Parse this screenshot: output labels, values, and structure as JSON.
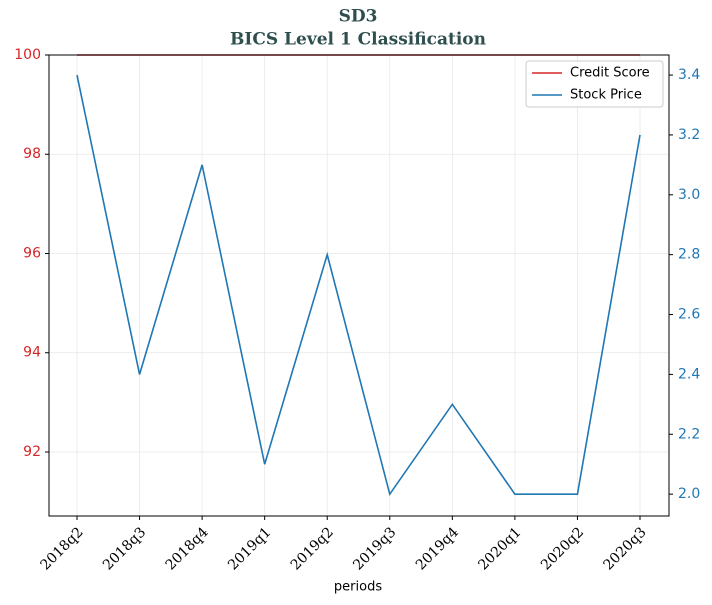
{
  "chart_data": {
    "type": "line",
    "title": "SD3",
    "subtitle": "BICS Level 1 Classification",
    "x_label": "periods",
    "categories": [
      "2018q2",
      "2018q3",
      "2018q4",
      "2019q1",
      "2019q2",
      "2019q3",
      "2019q4",
      "2020q1",
      "2020q2",
      "2020q3"
    ],
    "series": [
      {
        "name": "Credit Score",
        "color": "#d62728",
        "values": [
          100,
          100,
          100,
          100,
          100,
          100,
          100,
          100,
          100,
          100
        ]
      },
      {
        "name": "Stock Price",
        "color": "#1f77b4",
        "axis": "y2",
        "values": [
          3.4,
          2.4,
          3.1,
          2.1,
          2.8,
          2.0,
          2.3,
          2.0,
          2.0,
          3.2
        ]
      }
    ],
    "ylim": [
      90.71,
      100
    ],
    "yticks": [
      92,
      94,
      96,
      98,
      100
    ],
    "y2lim": [
      1.927,
      3.467
    ],
    "y2ticks": [
      {
        "value": 2,
        "label": "2.0"
      },
      2.2,
      2.4,
      2.6,
      2.8,
      {
        "value": 3,
        "label": "3.0"
      },
      3.2,
      3.4
    ],
    "grid": true,
    "legend": "upper right"
  }
}
